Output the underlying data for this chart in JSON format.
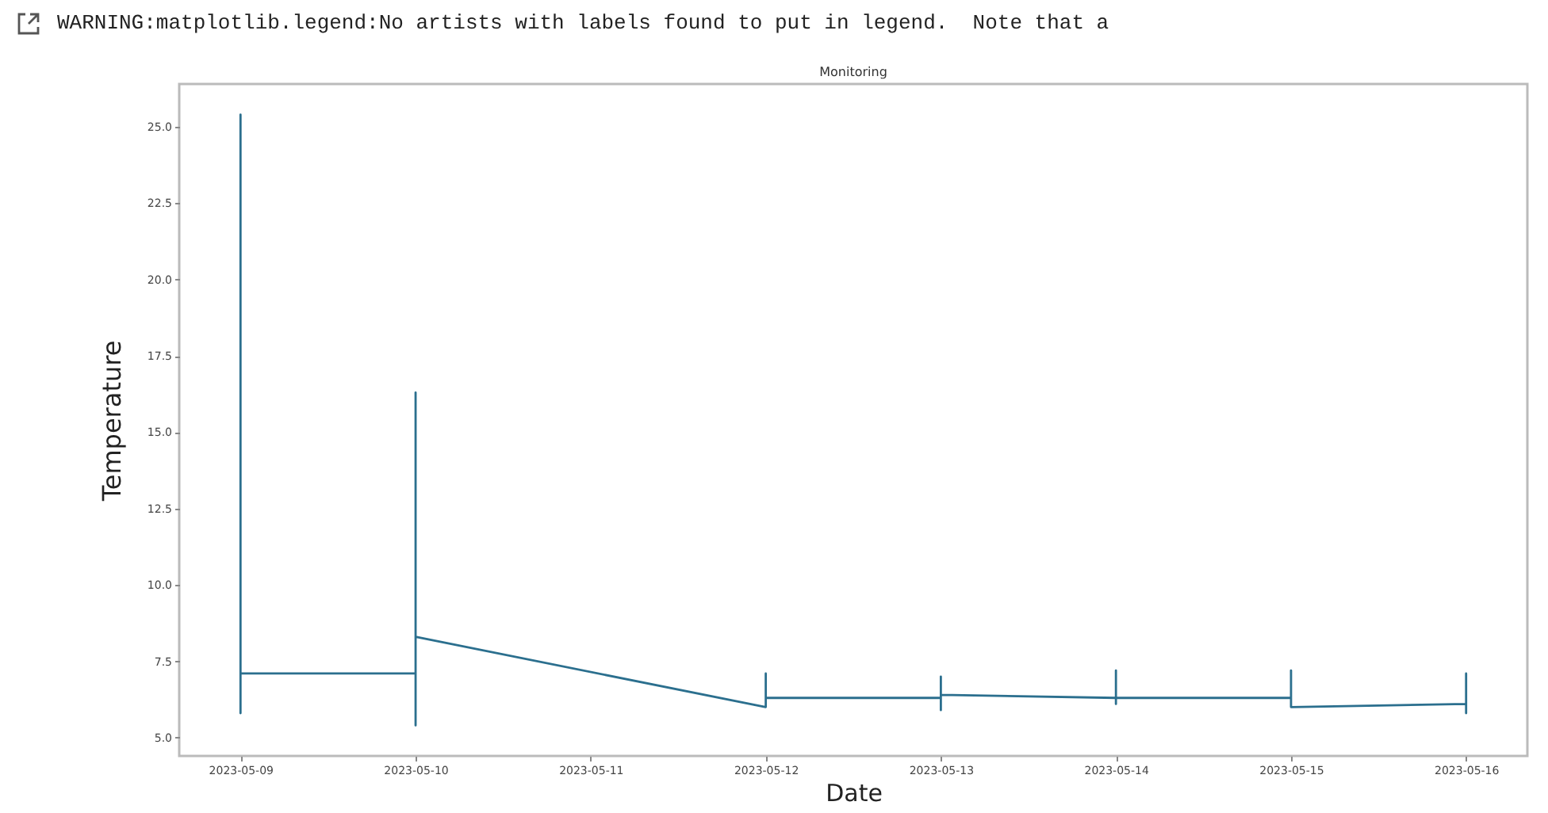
{
  "chart_data": {
    "type": "line",
    "title": "Monitoring",
    "xlabel": "Date",
    "ylabel": "Temperature",
    "annotations": [
      "WARNING:matplotlib.legend:No artists with labels found to put in legend.  Note that a"
    ],
    "x": [
      "2023-05-09",
      "2023-05-09",
      "2023-05-09",
      "2023-05-09",
      "2023-05-10",
      "2023-05-10",
      "2023-05-10",
      "2023-05-10",
      "2023-05-12",
      "2023-05-12",
      "2023-05-12",
      "2023-05-13",
      "2023-05-13",
      "2023-05-13",
      "2023-05-13",
      "2023-05-14",
      "2023-05-14",
      "2023-05-14",
      "2023-05-14",
      "2023-05-15",
      "2023-05-15",
      "2023-05-15",
      "2023-05-15",
      "2023-05-16",
      "2023-05-16",
      "2023-05-16",
      "2023-05-16"
    ],
    "series": [
      {
        "color": "#2b6f8e",
        "values": [
          7.1,
          25.4,
          5.8,
          7.1,
          7.1,
          16.3,
          5.4,
          8.3,
          6.0,
          7.1,
          6.3,
          6.3,
          7.0,
          5.9,
          6.4,
          6.3,
          7.2,
          6.1,
          6.3,
          6.3,
          7.2,
          6.1,
          6.0,
          6.1,
          7.1,
          5.8,
          6.1
        ]
      }
    ],
    "xlim": [
      "2023-05-08T15:36",
      "2023-05-16T08:24"
    ],
    "xticks": [
      "2023-05-09",
      "2023-05-10",
      "2023-05-11",
      "2023-05-12",
      "2023-05-13",
      "2023-05-14",
      "2023-05-15",
      "2023-05-16"
    ],
    "ylim": [
      4.4,
      26.4
    ],
    "yticks": [
      {
        "value": 5,
        "label": "5.0"
      },
      {
        "value": 7.5,
        "label": "7.5"
      },
      {
        "value": 10,
        "label": "10.0"
      },
      {
        "value": 12.5,
        "label": "12.5"
      },
      {
        "value": 15,
        "label": "15.0"
      },
      {
        "value": 17.5,
        "label": "17.5"
      },
      {
        "value": 20,
        "label": "20.0"
      },
      {
        "value": 22.5,
        "label": "22.5"
      },
      {
        "value": 25,
        "label": "25.0"
      }
    ],
    "grid": false,
    "marker": "none",
    "line_style": "solid"
  }
}
